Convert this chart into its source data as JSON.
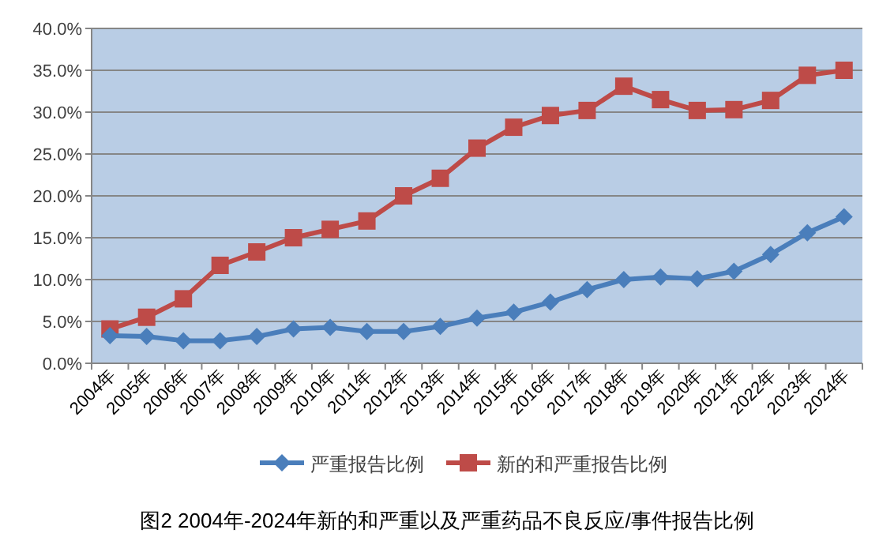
{
  "chart_data": {
    "type": "line",
    "title": "图2  2004年-2024年新的和严重以及严重药品不良反应/事件报告比例",
    "categories": [
      "2004年",
      "2005年",
      "2006年",
      "2007年",
      "2008年",
      "2009年",
      "2010年",
      "2011年",
      "2012年",
      "2013年",
      "2014年",
      "2015年",
      "2016年",
      "2017年",
      "2018年",
      "2019年",
      "2020年",
      "2021年",
      "2022年",
      "2023年",
      "2024年"
    ],
    "series": [
      {
        "name": "严重报告比例",
        "color": "#4a7ebb",
        "marker": "diamond",
        "values": [
          3.3,
          3.2,
          2.7,
          2.7,
          3.2,
          4.1,
          4.3,
          3.8,
          3.8,
          4.4,
          5.4,
          6.1,
          7.3,
          8.8,
          10.0,
          10.3,
          10.1,
          11.0,
          13.0,
          15.6,
          17.5
        ]
      },
      {
        "name": "新的和严重报告比例",
        "color": "#be4b48",
        "marker": "square",
        "values": [
          4.1,
          5.5,
          7.7,
          11.7,
          13.3,
          15.0,
          16.0,
          17.0,
          20.0,
          22.1,
          25.7,
          28.2,
          29.6,
          30.2,
          33.1,
          31.5,
          30.2,
          30.3,
          31.4,
          34.4,
          35.0
        ]
      }
    ],
    "ylim": [
      0,
      40
    ],
    "yticks": [
      {
        "value": 0,
        "label": "0.0%"
      },
      {
        "value": 5,
        "label": "5.0%"
      },
      {
        "value": 10,
        "label": "10.0%"
      },
      {
        "value": 15,
        "label": "15.0%"
      },
      {
        "value": 20,
        "label": "20.0%"
      },
      {
        "value": 25,
        "label": "25.0%"
      },
      {
        "value": 30,
        "label": "30.0%"
      },
      {
        "value": 35,
        "label": "35.0%"
      },
      {
        "value": 40,
        "label": "40.0%"
      }
    ],
    "grid": "y",
    "legend": "bottom"
  }
}
